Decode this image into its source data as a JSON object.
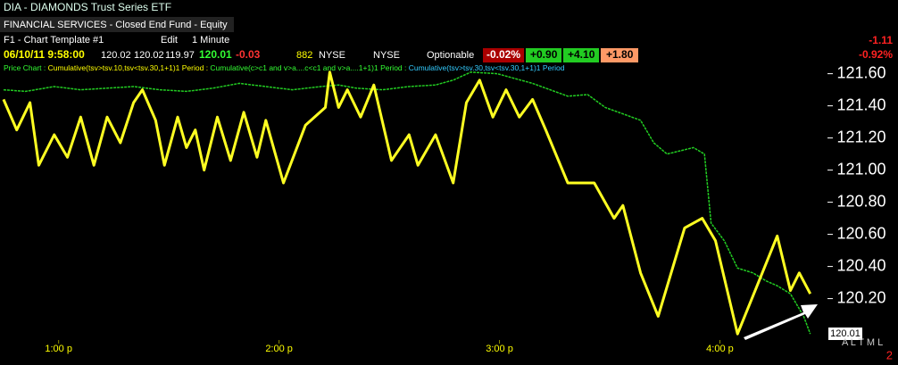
{
  "header": {
    "symbol": "DIA - DIAMONDS Trust Series ETF",
    "sector": "FINANCIAL SERVICES - Closed End Fund - Equity",
    "template": "F1 - Chart Template #1",
    "edit": "Edit",
    "interval": "1 Minute",
    "datetime": "06/10/11 9:58:00",
    "open": "120.02",
    "high": "120.02",
    "low": "119.97",
    "last": "120.01",
    "change": "-0.03",
    "volume": "882",
    "exchange": "NYSE",
    "exchange2": "NYSE",
    "optionable": "Optionable",
    "pct_change": "-0.02%",
    "badge1": "+0.90",
    "badge2": "+4.10",
    "badge3": "+1.80",
    "net_change": "-1.11",
    "net_pct": "-0.92%",
    "study_price": "Price Chart : ",
    "study1": "Cumulative(tsv>tsv.10,tsv<tsv.30,1+1)1 Period : ",
    "study2": "Cumulative(c>c1 and v>a....c<c1 and v>a....1+1)1 Period : ",
    "study3": "Cumulative(tsv>tsv.30,tsv<tsv.30,1+1)1 Period",
    "price_marker": "120.01",
    "bottom_letters": "A L T M L",
    "bottom_num": "2"
  },
  "chart_data": {
    "type": "line",
    "xlim": [
      12.734,
      16.48
    ],
    "ylim": [
      119.92,
      121.67
    ],
    "xticks": [
      {
        "value": 13,
        "label": "1:00 p"
      },
      {
        "value": 14,
        "label": "2:00 p"
      },
      {
        "value": 15,
        "label": "3:00 p"
      },
      {
        "value": 16,
        "label": "4:00 p"
      }
    ],
    "yticks": [
      {
        "value": 120.2,
        "label": "120.20"
      },
      {
        "value": 120.4,
        "label": "120.40"
      },
      {
        "value": 120.6,
        "label": "120.60"
      },
      {
        "value": 120.8,
        "label": "120.80"
      },
      {
        "value": 121.0,
        "label": "121.00"
      },
      {
        "value": 121.2,
        "label": "121.20"
      },
      {
        "value": 121.4,
        "label": "121.40"
      },
      {
        "value": 121.6,
        "label": "121.60"
      }
    ],
    "series": [
      {
        "color": "#22cc22",
        "x": [
          12.75,
          12.85,
          12.98,
          13.1,
          13.22,
          13.34,
          13.46,
          13.58,
          13.7,
          13.82,
          13.94,
          14.06,
          14.19,
          14.27,
          14.35,
          14.47,
          14.59,
          14.71,
          14.79,
          14.87,
          14.99,
          15.07,
          15.15,
          15.23,
          15.31,
          15.4,
          15.48,
          15.56,
          15.64,
          15.7,
          15.76,
          15.82,
          15.88,
          15.93,
          15.96,
          16.02,
          16.08,
          16.15,
          16.21,
          16.26,
          16.32,
          16.38,
          16.41
        ],
        "values": [
          121.5,
          121.49,
          121.52,
          121.5,
          121.51,
          121.52,
          121.5,
          121.49,
          121.51,
          121.54,
          121.52,
          121.5,
          121.52,
          121.53,
          121.51,
          121.5,
          121.52,
          121.53,
          121.56,
          121.61,
          121.6,
          121.57,
          121.54,
          121.5,
          121.46,
          121.47,
          121.39,
          121.35,
          121.31,
          121.17,
          121.1,
          121.12,
          121.14,
          121.1,
          120.67,
          120.56,
          120.39,
          120.36,
          120.31,
          120.28,
          120.23,
          120.09,
          119.98
        ]
      },
      {
        "color": "#ffff22",
        "x": [
          12.75,
          12.81,
          12.87,
          12.91,
          12.98,
          13.04,
          13.1,
          13.16,
          13.22,
          13.28,
          13.34,
          13.38,
          13.44,
          13.48,
          13.54,
          13.58,
          13.62,
          13.66,
          13.72,
          13.78,
          13.84,
          13.9,
          13.94,
          14.02,
          14.12,
          14.21,
          14.23,
          14.27,
          14.31,
          14.37,
          14.43,
          14.51,
          14.59,
          14.63,
          14.71,
          14.79,
          14.85,
          14.91,
          14.97,
          15.03,
          15.09,
          15.15,
          15.21,
          15.31,
          15.43,
          15.52,
          15.56,
          15.64,
          15.72,
          15.84,
          15.92,
          15.98,
          16.08,
          16.16,
          16.26,
          16.32,
          16.36,
          16.41
        ],
        "values": [
          121.44,
          121.25,
          121.42,
          121.03,
          121.22,
          121.08,
          121.33,
          121.03,
          121.33,
          121.17,
          121.42,
          121.5,
          121.31,
          121.03,
          121.33,
          121.14,
          121.25,
          121.0,
          121.33,
          121.06,
          121.36,
          121.08,
          121.31,
          120.92,
          121.28,
          121.39,
          121.61,
          121.39,
          121.5,
          121.33,
          121.53,
          121.06,
          121.22,
          121.03,
          121.22,
          120.92,
          121.42,
          121.56,
          121.33,
          121.5,
          121.33,
          121.44,
          121.25,
          120.92,
          120.92,
          120.7,
          120.78,
          120.36,
          120.09,
          120.64,
          120.7,
          120.56,
          119.98,
          120.25,
          120.59,
          120.25,
          120.36,
          120.23
        ]
      }
    ]
  }
}
